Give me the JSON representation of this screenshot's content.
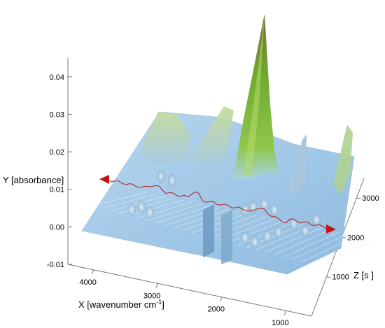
{
  "chart_data": {
    "type": "surface-3d",
    "title": "",
    "xlabel": "X [wavenumber cm",
    "xlabel_sup": "-1",
    "xlabel_end": "]",
    "ylabel": "Y [absorbance]",
    "zlabel": "Z [s ]",
    "x_ticks": [
      "4000",
      "3000",
      "2000",
      "1000"
    ],
    "y_ticks": [
      "0.04",
      "0.03",
      "0.02",
      "0.01",
      "0.00",
      "-0.01"
    ],
    "z_ticks": [
      "1000",
      "2000",
      "3000"
    ],
    "xlim": [
      4400,
      600
    ],
    "ylim": [
      -0.01,
      0.045
    ],
    "zlim": [
      0,
      3500
    ],
    "surface_color_low": "#9cc6e6",
    "surface_color_high": "#7ab830",
    "peak_color": "#4e9d2d",
    "trace_color": "#b0201c",
    "marker_color": "#cc1111",
    "peaks": [
      {
        "x": 1715,
        "z": 2200,
        "y": 0.044
      },
      {
        "x": 2950,
        "z": 2500,
        "y": 0.021
      },
      {
        "x": 2850,
        "z": 2700,
        "y": 0.019
      },
      {
        "x": 1250,
        "z": 1300,
        "y": 0.013
      },
      {
        "x": 800,
        "z": 2100,
        "y": 0.017
      }
    ]
  }
}
